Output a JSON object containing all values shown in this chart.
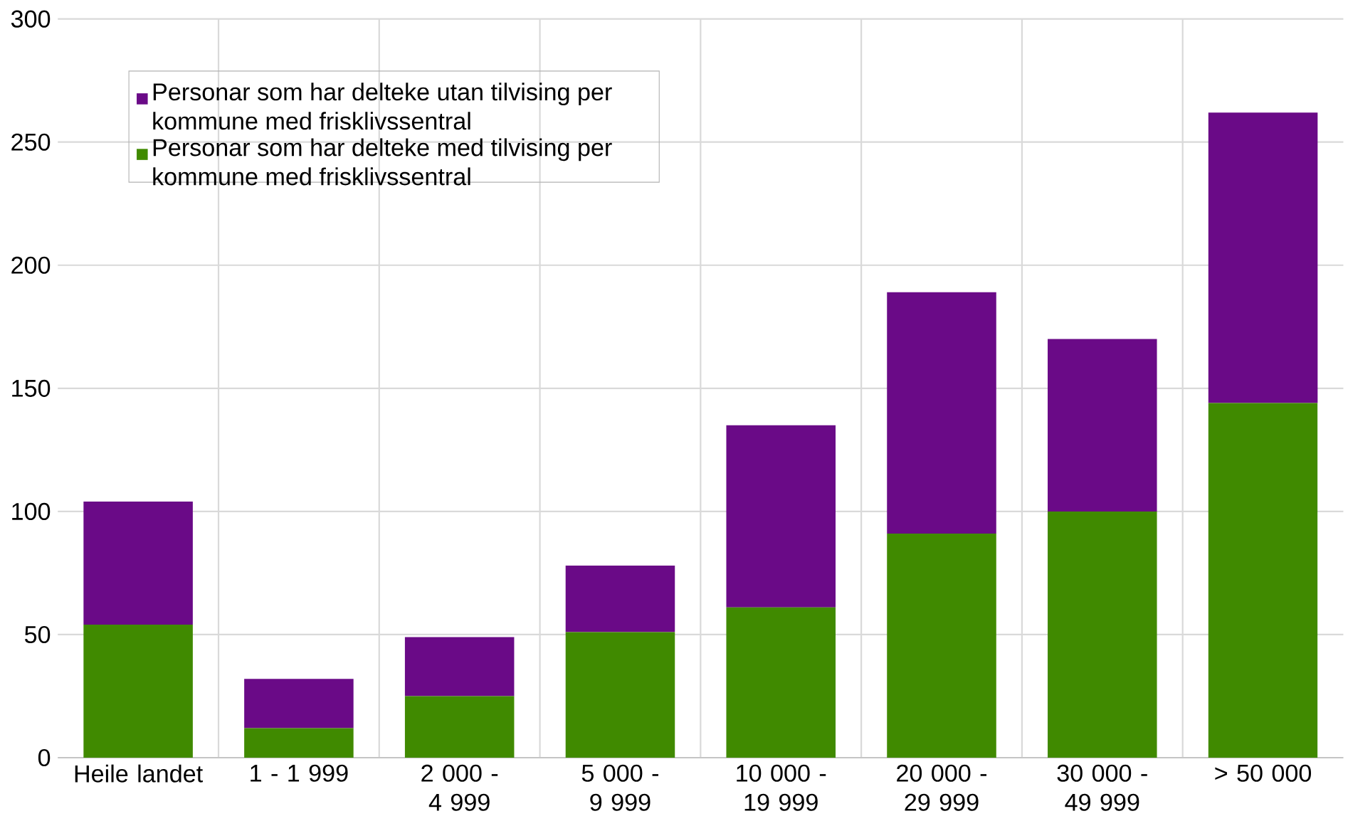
{
  "chart_data": {
    "type": "bar",
    "stacked": true,
    "categories": [
      "Heile landet",
      "1 - 1 999",
      "2 000 - 4 999",
      "5 000 - 9 999",
      "10 000 - 19 999",
      "20 000 - 29 999",
      "30 000 - 49 999",
      "> 50 000"
    ],
    "series": [
      {
        "name": "Personar som har delteke med tilvising per kommune med frisklivssentral",
        "color": "#408a00",
        "values": [
          54,
          12,
          25,
          51,
          61,
          91,
          100,
          144
        ]
      },
      {
        "name": "Personar som har delteke utan tilvising per kommune med frisklivssentral",
        "color": "#6a0a87",
        "values": [
          50,
          20,
          24,
          27,
          74,
          98,
          70,
          118
        ]
      }
    ],
    "ylim": [
      0,
      300
    ],
    "yticks": [
      0,
      50,
      100,
      150,
      200,
      250,
      300
    ],
    "grid": true,
    "legend": "top left"
  }
}
